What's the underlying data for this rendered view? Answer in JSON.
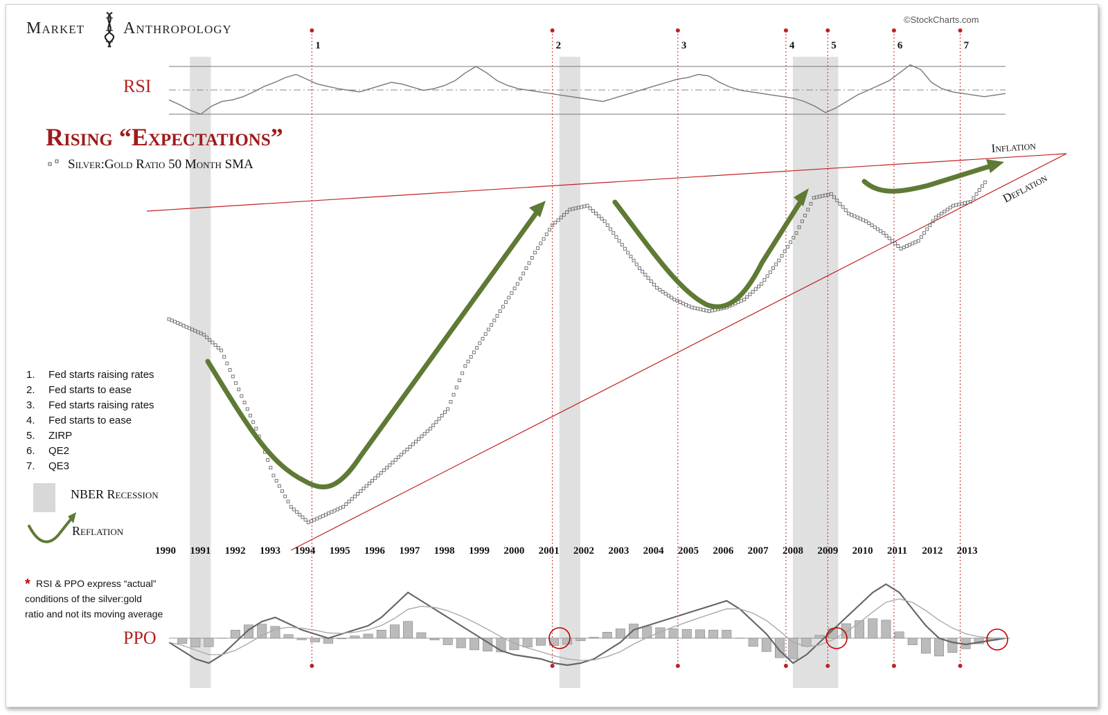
{
  "brand": {
    "left": "Market",
    "right": "Anthropology"
  },
  "source": "©StockCharts.com",
  "colors": {
    "accent": "#b22222",
    "arrow": "#5e7a34",
    "marker": "#555555",
    "recession": "#d8d8d8"
  },
  "chart_data": {
    "type": "line",
    "title": "Rising “Expectations”",
    "series_label": "Silver:Gold Ratio 50 Month SMA",
    "x_range": [
      1990,
      2014
    ],
    "x_ticks": [
      "1990",
      "1991",
      "1992",
      "1993",
      "1994",
      "1995",
      "1996",
      "1997",
      "1998",
      "1999",
      "2000",
      "2001",
      "2002",
      "2003",
      "2004",
      "2005",
      "2006",
      "2007",
      "2008",
      "2009",
      "2010",
      "2011",
      "2012",
      "2013"
    ],
    "silver_gold_sma": [
      [
        1990.0,
        0.8
      ],
      [
        1990.5,
        0.78
      ],
      [
        1991.0,
        0.76
      ],
      [
        1991.5,
        0.72
      ],
      [
        1992.0,
        0.62
      ],
      [
        1992.5,
        0.52
      ],
      [
        1993.0,
        0.4
      ],
      [
        1993.5,
        0.32
      ],
      [
        1994.0,
        0.28
      ],
      [
        1994.5,
        0.3
      ],
      [
        1995.0,
        0.32
      ],
      [
        1995.5,
        0.36
      ],
      [
        1996.0,
        0.4
      ],
      [
        1996.5,
        0.44
      ],
      [
        1997.0,
        0.48
      ],
      [
        1997.5,
        0.52
      ],
      [
        1998.0,
        0.57
      ],
      [
        1998.5,
        0.68
      ],
      [
        1999.0,
        0.75
      ],
      [
        1999.5,
        0.82
      ],
      [
        2000.0,
        0.89
      ],
      [
        2000.5,
        0.97
      ],
      [
        2001.0,
        1.04
      ],
      [
        2001.5,
        1.08
      ],
      [
        2002.0,
        1.09
      ],
      [
        2002.5,
        1.05
      ],
      [
        2003.0,
        0.99
      ],
      [
        2003.5,
        0.93
      ],
      [
        2004.0,
        0.88
      ],
      [
        2004.5,
        0.85
      ],
      [
        2005.0,
        0.83
      ],
      [
        2005.5,
        0.82
      ],
      [
        2006.0,
        0.83
      ],
      [
        2006.5,
        0.85
      ],
      [
        2007.0,
        0.89
      ],
      [
        2007.5,
        0.95
      ],
      [
        2008.0,
        1.02
      ],
      [
        2008.5,
        1.11
      ],
      [
        2009.0,
        1.12
      ],
      [
        2009.5,
        1.07
      ],
      [
        2010.0,
        1.05
      ],
      [
        2010.5,
        1.02
      ],
      [
        2011.0,
        0.98
      ],
      [
        2011.5,
        1.0
      ],
      [
        2012.0,
        1.06
      ],
      [
        2012.5,
        1.09
      ],
      [
        2013.0,
        1.1
      ],
      [
        2013.5,
        1.16
      ]
    ],
    "y_range": [
      0.2,
      1.2
    ],
    "recessions": [
      [
        1990.6,
        1991.2
      ],
      [
        2001.2,
        2001.8
      ],
      [
        2007.9,
        2009.2
      ]
    ],
    "events": [
      {
        "num": "1",
        "year": 1994.1,
        "label": "Fed starts raising rates"
      },
      {
        "num": "2",
        "year": 2001.0,
        "label": "Fed starts to ease"
      },
      {
        "num": "3",
        "year": 2004.6,
        "label": "Fed starts raising rates"
      },
      {
        "num": "4",
        "year": 2007.7,
        "label": "Fed starts to ease"
      },
      {
        "num": "5",
        "year": 2008.9,
        "label": "ZIRP"
      },
      {
        "num": "6",
        "year": 2010.8,
        "label": "QE2"
      },
      {
        "num": "7",
        "year": 2012.7,
        "label": "QE3"
      }
    ],
    "trendlines": {
      "upper_label": "Inflation",
      "lower_label": "Deflation"
    },
    "rsi": {
      "label": "RSI",
      "values": [
        38,
        32,
        25,
        20,
        30,
        36,
        38,
        42,
        48,
        55,
        60,
        66,
        70,
        64,
        58,
        55,
        52,
        50,
        48,
        52,
        56,
        60,
        58,
        54,
        50,
        52,
        56,
        62,
        72,
        80,
        72,
        62,
        56,
        52,
        50,
        48,
        46,
        44,
        42,
        40,
        38,
        36,
        40,
        44,
        48,
        52,
        56,
        60,
        64,
        66,
        70,
        68,
        60,
        54,
        50,
        48,
        46,
        44,
        42,
        40,
        36,
        30,
        22,
        28,
        36,
        44,
        50,
        56,
        62,
        72,
        82,
        76,
        60,
        52,
        48,
        46,
        44,
        42,
        44,
        46
      ]
    },
    "ppo": {
      "label": "PPO",
      "note": "RSI & PPO express “actual” conditions of the silver:gold ratio and not its moving average",
      "note_lines": [
        "RSI & PPO express “actual”",
        "conditions of the silver:gold",
        "ratio and not its moving average"
      ],
      "note_star": "*",
      "line": [
        -2,
        -6,
        -10,
        -12,
        -8,
        -2,
        4,
        8,
        10,
        7,
        4,
        2,
        0,
        2,
        4,
        6,
        10,
        16,
        22,
        18,
        14,
        10,
        6,
        2,
        -2,
        -6,
        -8,
        -9,
        -10,
        -12,
        -13,
        -12,
        -10,
        -6,
        -2,
        4,
        6,
        8,
        10,
        12,
        14,
        16,
        18,
        14,
        8,
        2,
        -6,
        -12,
        -8,
        -2,
        4,
        10,
        16,
        22,
        26,
        22,
        14,
        6,
        0,
        -2,
        -3,
        -2,
        -1,
        0
      ]
    },
    "legend": {
      "recession_label": "NBER Recession",
      "reflation_label": "Reflation"
    }
  },
  "legend_list": [
    {
      "num": "1.",
      "text": "Fed starts raising rates"
    },
    {
      "num": "2.",
      "text": "Fed starts to ease"
    },
    {
      "num": "3.",
      "text": "Fed starts raising rates"
    },
    {
      "num": "4.",
      "text": "Fed starts to ease"
    },
    {
      "num": "5.",
      "text": "ZIRP"
    },
    {
      "num": "6.",
      "text": "QE2"
    },
    {
      "num": "7.",
      "text": "QE3"
    }
  ]
}
